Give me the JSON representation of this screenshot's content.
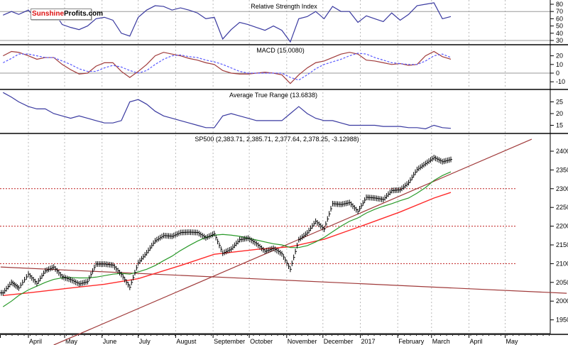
{
  "logo": {
    "part1": "Sunshine",
    "part2": "Profits.com"
  },
  "chart_data": [
    {
      "type": "line",
      "title": "Relative Strength Index",
      "ylim": [
        25,
        85
      ],
      "yticks": [
        30,
        40,
        50,
        60,
        70,
        80
      ],
      "hlines": [
        30,
        70
      ],
      "color": "#3a3aa0",
      "dates": [
        "2016-03-11",
        "2016-03-18",
        "2016-03-24",
        "2016-04-01",
        "2016-04-08",
        "2016-04-15",
        "2016-04-22",
        "2016-04-29",
        "2016-05-06",
        "2016-05-13",
        "2016-05-20",
        "2016-05-27",
        "2016-06-03",
        "2016-06-10",
        "2016-06-17",
        "2016-06-24",
        "2016-07-01",
        "2016-07-08",
        "2016-07-15",
        "2016-07-22",
        "2016-07-29",
        "2016-08-05",
        "2016-08-12",
        "2016-08-19",
        "2016-08-26",
        "2016-09-02",
        "2016-09-09",
        "2016-09-16",
        "2016-09-23",
        "2016-09-30",
        "2016-10-07",
        "2016-10-14",
        "2016-10-21",
        "2016-10-28",
        "2016-11-04",
        "2016-11-11",
        "2016-11-18",
        "2016-11-25",
        "2016-12-02",
        "2016-12-09",
        "2016-12-16",
        "2016-12-23",
        "2016-12-30",
        "2017-01-06",
        "2017-01-13",
        "2017-01-20",
        "2017-01-27",
        "2017-02-03",
        "2017-02-10",
        "2017-02-17",
        "2017-02-24",
        "2017-03-03",
        "2017-03-10",
        "2017-03-17"
      ],
      "values": [
        65,
        70,
        66,
        72,
        58,
        68,
        70,
        52,
        48,
        45,
        50,
        60,
        62,
        58,
        40,
        36,
        62,
        72,
        78,
        77,
        72,
        75,
        72,
        68,
        60,
        62,
        32,
        45,
        55,
        52,
        48,
        44,
        50,
        44,
        28,
        60,
        63,
        70,
        60,
        77,
        70,
        70,
        55,
        64,
        60,
        56,
        68,
        58,
        66,
        78,
        80,
        82,
        60,
        63
      ]
    },
    {
      "type": "line",
      "title": "MACD (15.0080)",
      "ylim": [
        -16,
        30
      ],
      "yticks": [
        -10,
        0,
        10,
        20
      ],
      "hlines": [
        0
      ],
      "series": [
        {
          "role": "macd",
          "color": "#a03a3a",
          "values": [
            20,
            25,
            24,
            20,
            16,
            18,
            18,
            10,
            4,
            -1,
            0,
            8,
            12,
            12,
            2,
            -5,
            2,
            10,
            20,
            24,
            22,
            20,
            17,
            15,
            12,
            10,
            3,
            0,
            -1,
            -1,
            0,
            1,
            0,
            -2,
            -12,
            -2,
            6,
            12,
            14,
            18,
            22,
            24,
            22,
            15,
            14,
            12,
            10,
            11,
            9,
            10,
            20,
            25,
            19,
            16
          ]
        },
        {
          "role": "signal",
          "color": "#5a5aff",
          "values": [
            12,
            17,
            22,
            22,
            20,
            18,
            18,
            14,
            10,
            5,
            2,
            2,
            6,
            9,
            7,
            3,
            0,
            3,
            10,
            16,
            20,
            21,
            19,
            18,
            15,
            13,
            10,
            6,
            2,
            0,
            0,
            0,
            0,
            0,
            -5,
            -8,
            -2,
            5,
            10,
            13,
            16,
            20,
            23,
            22,
            18,
            15,
            12,
            11,
            10,
            10,
            14,
            20,
            22,
            18
          ]
        }
      ]
    },
    {
      "type": "line",
      "title": "Average True Range (13.6838)",
      "ylim": [
        11,
        31
      ],
      "yticks": [
        15,
        20,
        25
      ],
      "color": "#3a3aa0",
      "values": [
        29,
        27,
        25,
        23,
        22,
        22,
        20,
        19,
        18,
        19,
        18,
        17,
        16,
        16,
        17,
        25,
        26,
        24,
        21,
        19,
        18,
        17,
        16,
        15,
        14,
        14,
        19,
        20,
        19,
        18,
        17,
        17,
        17,
        17,
        20,
        23,
        20,
        18,
        17,
        17,
        16,
        15,
        15,
        15,
        15,
        14.5,
        14.5,
        14.5,
        14,
        14,
        13.5,
        15,
        14,
        13.7
      ]
    },
    {
      "type": "bar",
      "title": "SP500 (2,383.71, 2,385.71, 2,377.64, 2,378.25, -3.12988)",
      "ylim": [
        1930,
        2450
      ],
      "yticks": [
        1950,
        2000,
        2050,
        2100,
        2150,
        2200,
        2250,
        2300,
        2350,
        2400
      ],
      "close": [
        2022,
        2050,
        2035,
        2072,
        2047,
        2081,
        2091,
        2065,
        2057,
        2046,
        2052,
        2099,
        2099,
        2096,
        2071,
        2037,
        2102,
        2129,
        2161,
        2175,
        2173,
        2183,
        2184,
        2183,
        2169,
        2180,
        2128,
        2139,
        2164,
        2168,
        2153,
        2133,
        2141,
        2126,
        2085,
        2164,
        2182,
        2213,
        2192,
        2260,
        2258,
        2263,
        2239,
        2277,
        2275,
        2271,
        2295,
        2297,
        2316,
        2351,
        2367,
        2383,
        2372,
        2378
      ],
      "ma_short": {
        "color": "#2a9a2a",
        "values": [
          1985,
          2000,
          2015,
          2030,
          2040,
          2050,
          2058,
          2062,
          2063,
          2062,
          2062,
          2064,
          2068,
          2072,
          2074,
          2072,
          2078,
          2085,
          2095,
          2108,
          2120,
          2135,
          2148,
          2160,
          2170,
          2176,
          2178,
          2176,
          2173,
          2168,
          2163,
          2158,
          2153,
          2150,
          2143,
          2143,
          2148,
          2158,
          2170,
          2185,
          2200,
          2213,
          2222,
          2235,
          2245,
          2253,
          2260,
          2268,
          2275,
          2288,
          2303,
          2322,
          2335,
          2345
        ]
      },
      "ma_long": {
        "color": "#ff2a2a",
        "dates": [
          "2016-03-11",
          "2016-04-01",
          "2016-05-06",
          "2016-06-03",
          "2016-07-01",
          "2016-08-05",
          "2016-09-02",
          "2016-10-07",
          "2016-11-04",
          "2016-12-02",
          "2017-01-06",
          "2017-02-03",
          "2017-03-03",
          "2017-03-17"
        ],
        "values": [
          2015,
          2022,
          2035,
          2045,
          2060,
          2095,
          2125,
          2138,
          2145,
          2165,
          2205,
          2238,
          2275,
          2290
        ]
      },
      "trendlines": [
        {
          "color": "#a03a3a",
          "from": [
            "2016-04-22",
            1883
          ],
          "to": [
            "2017-05-23",
            2432
          ]
        },
        {
          "color": "#a03a3a",
          "from": [
            "2016-03-09",
            2091
          ],
          "to": [
            "2017-06-21",
            2021
          ]
        }
      ],
      "hlines": [
        {
          "value": 2300,
          "color": "#c02020",
          "style": "dotted"
        },
        {
          "value": 2200,
          "color": "#c02020",
          "style": "dotted"
        },
        {
          "value": 2100,
          "color": "#c02020",
          "style": "dotted"
        }
      ]
    }
  ],
  "xaxis": {
    "labels": [
      {
        "text": "ch",
        "date": "2016-03-01"
      },
      {
        "text": "April",
        "date": "2016-04-01"
      },
      {
        "text": "May",
        "date": "2016-05-01"
      },
      {
        "text": "June",
        "date": "2016-06-01"
      },
      {
        "text": "July",
        "date": "2016-07-01"
      },
      {
        "text": "August",
        "date": "2016-08-01"
      },
      {
        "text": "September",
        "date": "2016-09-01"
      },
      {
        "text": "October",
        "date": "2016-10-01"
      },
      {
        "text": "November",
        "date": "2016-11-01"
      },
      {
        "text": "December",
        "date": "2016-12-01"
      },
      {
        "text": "2017",
        "date": "2017-01-01"
      },
      {
        "text": "February",
        "date": "2017-02-01"
      },
      {
        "text": "March",
        "date": "2017-03-01"
      },
      {
        "text": "April",
        "date": "2017-04-01"
      },
      {
        "text": "May",
        "date": "2017-05-01"
      }
    ]
  }
}
